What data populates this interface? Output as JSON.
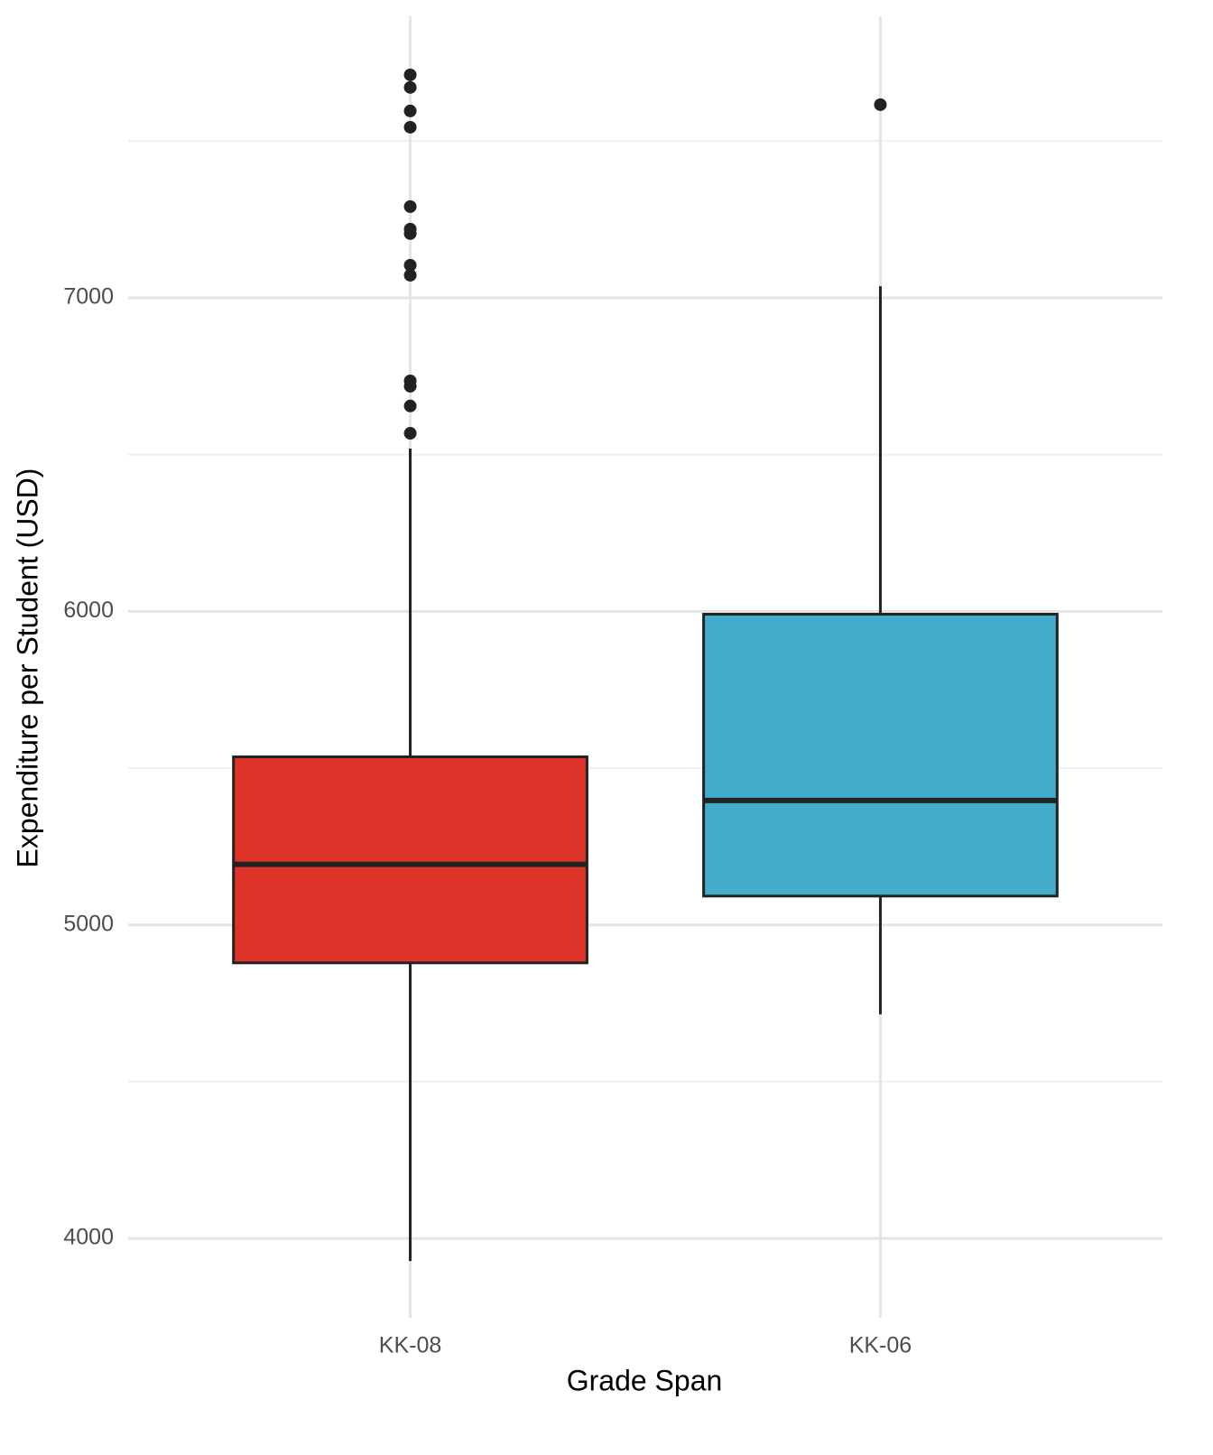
{
  "chart_data": {
    "type": "box",
    "x_label": "Grade Span",
    "y_label": "Expenditure per Student (USD)",
    "categories": [
      "KK-08",
      "KK-06"
    ],
    "boxes": [
      {
        "color": "#dd3329",
        "whisker_low": 3928,
        "q1": 4879,
        "median": 5193,
        "q3": 5536,
        "whisker_high": 6519,
        "outliers": [
          7711,
          7671,
          7596,
          7544,
          7291,
          7219,
          7205,
          7104,
          7072,
          6735,
          6718,
          6655,
          6568
        ]
      },
      {
        "color": "#42acca",
        "whisker_low": 4715,
        "q1": 5092,
        "median": 5397,
        "q3": 5991,
        "whisker_high": 7037,
        "outliers": [
          7616
        ]
      }
    ],
    "ylim": [
      3747,
      7898
    ],
    "yticks": [
      4000,
      5000,
      6000,
      7000
    ],
    "minor_yticks": [
      4500,
      5500,
      6500,
      7500
    ],
    "grid": true
  }
}
